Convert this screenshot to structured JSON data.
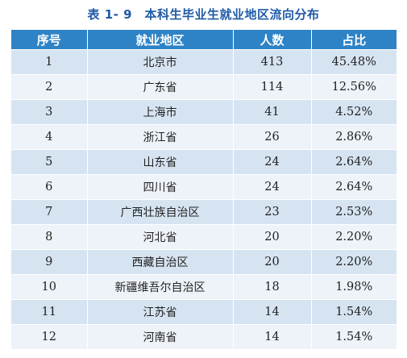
{
  "title": "表 1- 9　本科生毕业生就业地区流向分布",
  "headers": [
    "序号",
    "就业地区",
    "人数",
    "占比"
  ],
  "rows": [
    {
      "no": "1",
      "region": "北京市",
      "count": "413",
      "ratio": "45.48%"
    },
    {
      "no": "2",
      "region": "广东省",
      "count": "114",
      "ratio": "12.56%"
    },
    {
      "no": "3",
      "region": "上海市",
      "count": "41",
      "ratio": "4.52%"
    },
    {
      "no": "4",
      "region": "浙江省",
      "count": "26",
      "ratio": "2.86%"
    },
    {
      "no": "5",
      "region": "山东省",
      "count": "24",
      "ratio": "2.64%"
    },
    {
      "no": "6",
      "region": "四川省",
      "count": "24",
      "ratio": "2.64%"
    },
    {
      "no": "7",
      "region": "广西壮族自治区",
      "count": "23",
      "ratio": "2.53%"
    },
    {
      "no": "8",
      "region": "河北省",
      "count": "20",
      "ratio": "2.20%"
    },
    {
      "no": "9",
      "region": "西藏自治区",
      "count": "20",
      "ratio": "2.20%"
    },
    {
      "no": "10",
      "region": "新疆维吾尔自治区",
      "count": "18",
      "ratio": "1.98%"
    },
    {
      "no": "11",
      "region": "江苏省",
      "count": "14",
      "ratio": "1.54%"
    },
    {
      "no": "12",
      "region": "河南省",
      "count": "14",
      "ratio": "1.54%"
    }
  ],
  "colors": {
    "title": "#1f5aa6",
    "header_bg": "#2e83c6",
    "row_dark": "#d6e4f2",
    "row_light": "#eef3fa"
  }
}
